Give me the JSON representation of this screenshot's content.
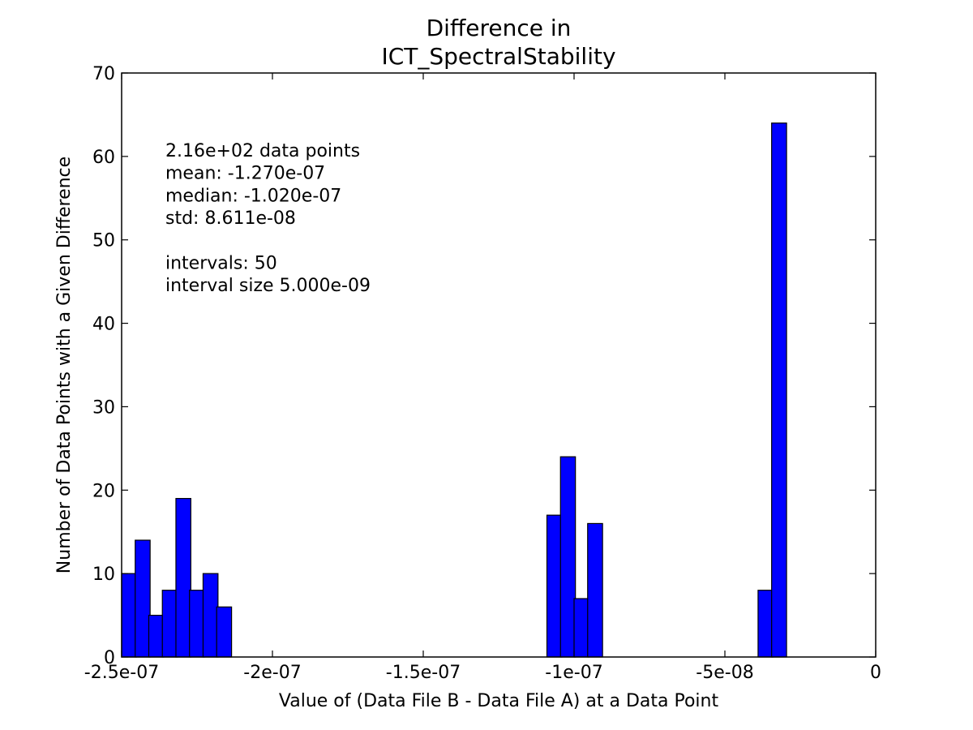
{
  "chart_data": {
    "type": "bar",
    "title": [
      "Difference in",
      "ICT_SpectralStability"
    ],
    "xlabel": "Value of (Data File B - Data File A) at a Data Point",
    "ylabel": "Number of Data Points with a Given Difference",
    "xlim": [
      -2.5e-07,
      0
    ],
    "ylim": [
      0,
      70
    ],
    "bin_width": 5e-09,
    "bar_color": "#0000ff",
    "edge_color": "#000000",
    "grid": false,
    "x_ticks": [
      {
        "value": -2.5e-07,
        "label": "-2.5e-07"
      },
      {
        "value": -2e-07,
        "label": "-2e-07"
      },
      {
        "value": -1.5e-07,
        "label": "-1.5e-07"
      },
      {
        "value": -1e-07,
        "label": "-1e-07"
      },
      {
        "value": -5e-08,
        "label": "-5e-08"
      },
      {
        "value": 0,
        "label": "0"
      }
    ],
    "y_ticks": [
      {
        "value": 0,
        "label": "0"
      },
      {
        "value": 10,
        "label": "10"
      },
      {
        "value": 20,
        "label": "20"
      },
      {
        "value": 30,
        "label": "30"
      },
      {
        "value": 40,
        "label": "40"
      },
      {
        "value": 50,
        "label": "50"
      },
      {
        "value": 60,
        "label": "60"
      },
      {
        "value": 70,
        "label": "70"
      }
    ],
    "bins": [
      {
        "x_start": -2.5e-07,
        "count": 10
      },
      {
        "x_start": -2.455e-07,
        "count": 14
      },
      {
        "x_start": -2.41e-07,
        "count": 5
      },
      {
        "x_start": -2.365e-07,
        "count": 8
      },
      {
        "x_start": -2.32e-07,
        "count": 19
      },
      {
        "x_start": -2.275e-07,
        "count": 8
      },
      {
        "x_start": -2.23e-07,
        "count": 10
      },
      {
        "x_start": -2.185e-07,
        "count": 6
      },
      {
        "x_start": -1.09e-07,
        "count": 17
      },
      {
        "x_start": -1.045e-07,
        "count": 24
      },
      {
        "x_start": -1e-07,
        "count": 7
      },
      {
        "x_start": -9.55e-08,
        "count": 16
      },
      {
        "x_start": -3.9e-08,
        "count": 8
      },
      {
        "x_start": -3.45e-08,
        "count": 64
      }
    ],
    "annotations": [
      "2.16e+02 data points",
      "mean: -1.270e-07",
      "median: -1.020e-07",
      "std: 8.611e-08",
      "",
      "intervals: 50",
      "interval size 5.000e-09"
    ]
  }
}
